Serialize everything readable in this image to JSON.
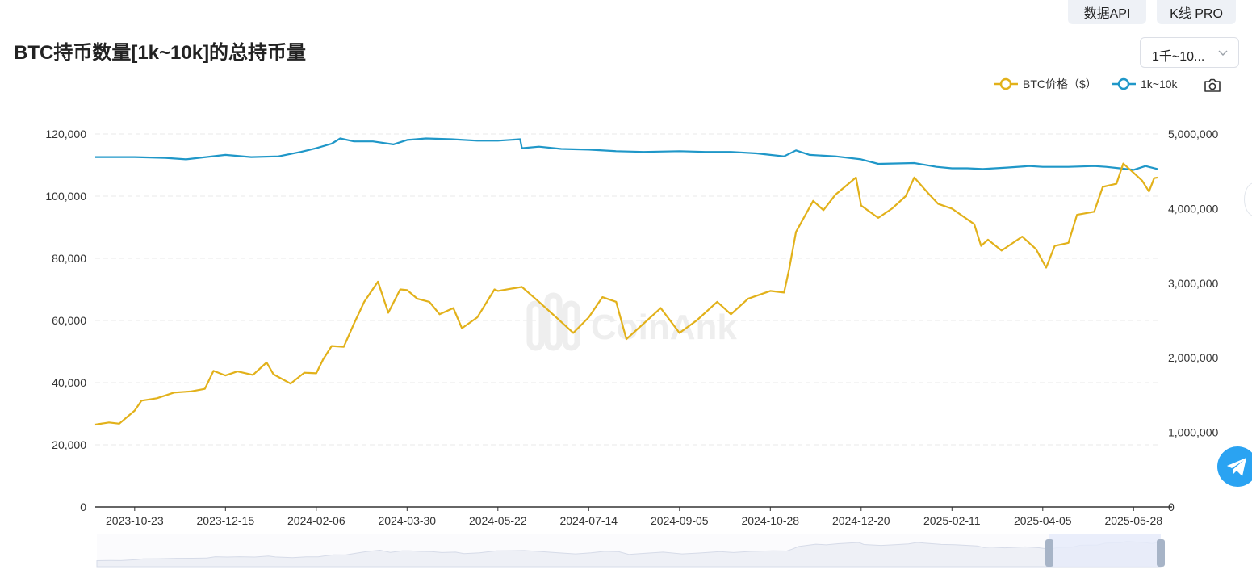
{
  "header": {
    "api_button": "数据API",
    "kline_button": "K线 PRO",
    "title": "BTC持币数量[1k~10k]的总持币量",
    "range_select": "1千~10..."
  },
  "legend": {
    "btc_label": "BTC价格（$）",
    "holder_label": "1k~10k"
  },
  "colors": {
    "btc_price": "#e2b11a",
    "holder": "#1f97c8",
    "grid": "#e8e8e8",
    "axis": "#333333",
    "zoom_fill": "#e8ecfa",
    "zoom_handle": "#a7b4c7"
  },
  "chart_data": {
    "type": "line",
    "x_ticks": [
      "2023-10-23",
      "2023-12-15",
      "2024-02-06",
      "2024-03-30",
      "2024-05-22",
      "2024-07-14",
      "2024-09-05",
      "2024-10-28",
      "2024-12-20",
      "2025-02-11",
      "2025-04-05",
      "2025-05-28"
    ],
    "x_range": [
      "2023-09-30",
      "2025-06-11"
    ],
    "y_left": {
      "ticks": [
        "0",
        "20,000",
        "40,000",
        "60,000",
        "80,000",
        "100,000",
        "120,000"
      ],
      "min": 0,
      "max": 120000
    },
    "y_right": {
      "ticks": [
        "0",
        "1,000,000",
        "2,000,000",
        "3,000,000",
        "4,000,000",
        "5,000,000"
      ],
      "min": 0,
      "max": 5000000
    },
    "grid": true,
    "legend_position": "top-right",
    "watermark": "CoinAnk",
    "series": [
      {
        "name": "BTC价格（$）",
        "axis": "left",
        "points": [
          [
            "2023-09-30",
            26500
          ],
          [
            "2023-10-08",
            27200
          ],
          [
            "2023-10-14",
            26800
          ],
          [
            "2023-10-23",
            31000
          ],
          [
            "2023-10-27",
            34200
          ],
          [
            "2023-11-05",
            35000
          ],
          [
            "2023-11-15",
            36800
          ],
          [
            "2023-11-25",
            37200
          ],
          [
            "2023-12-03",
            38000
          ],
          [
            "2023-12-08",
            43800
          ],
          [
            "2023-12-15",
            42300
          ],
          [
            "2023-12-22",
            43600
          ],
          [
            "2023-12-31",
            42500
          ],
          [
            "2024-01-08",
            46500
          ],
          [
            "2024-01-12",
            42700
          ],
          [
            "2024-01-22",
            39700
          ],
          [
            "2024-01-30",
            43200
          ],
          [
            "2024-02-06",
            43000
          ],
          [
            "2024-02-10",
            47500
          ],
          [
            "2024-02-15",
            51800
          ],
          [
            "2024-02-22",
            51500
          ],
          [
            "2024-02-28",
            59000
          ],
          [
            "2024-03-05",
            66000
          ],
          [
            "2024-03-13",
            72500
          ],
          [
            "2024-03-19",
            62500
          ],
          [
            "2024-03-26",
            70000
          ],
          [
            "2024-03-30",
            69800
          ],
          [
            "2024-04-05",
            67000
          ],
          [
            "2024-04-12",
            66000
          ],
          [
            "2024-04-18",
            62000
          ],
          [
            "2024-04-26",
            64000
          ],
          [
            "2024-05-01",
            57500
          ],
          [
            "2024-05-10",
            61000
          ],
          [
            "2024-05-20",
            70000
          ],
          [
            "2024-05-22",
            69500
          ],
          [
            "2024-06-05",
            70800
          ],
          [
            "2024-06-15",
            66000
          ],
          [
            "2024-06-25",
            61000
          ],
          [
            "2024-07-05",
            56000
          ],
          [
            "2024-07-14",
            61000
          ],
          [
            "2024-07-22",
            67500
          ],
          [
            "2024-07-30",
            66000
          ],
          [
            "2024-08-05",
            54000
          ],
          [
            "2024-08-15",
            59000
          ],
          [
            "2024-08-25",
            64000
          ],
          [
            "2024-09-05",
            56000
          ],
          [
            "2024-09-15",
            60000
          ],
          [
            "2024-09-27",
            66000
          ],
          [
            "2024-10-05",
            62000
          ],
          [
            "2024-10-15",
            67000
          ],
          [
            "2024-10-28",
            69500
          ],
          [
            "2024-11-05",
            69000
          ],
          [
            "2024-11-08",
            76500
          ],
          [
            "2024-11-12",
            88500
          ],
          [
            "2024-11-22",
            98500
          ],
          [
            "2024-11-28",
            95500
          ],
          [
            "2024-12-05",
            100500
          ],
          [
            "2024-12-17",
            106000
          ],
          [
            "2024-12-20",
            97000
          ],
          [
            "2024-12-30",
            93000
          ],
          [
            "2025-01-07",
            96000
          ],
          [
            "2025-01-15",
            100000
          ],
          [
            "2025-01-20",
            106000
          ],
          [
            "2025-01-28",
            101000
          ],
          [
            "2025-02-03",
            97500
          ],
          [
            "2025-02-11",
            96000
          ],
          [
            "2025-02-24",
            91000
          ],
          [
            "2025-02-28",
            84000
          ],
          [
            "2025-03-04",
            86000
          ],
          [
            "2025-03-12",
            82500
          ],
          [
            "2025-03-24",
            87000
          ],
          [
            "2025-04-01",
            83000
          ],
          [
            "2025-04-07",
            77000
          ],
          [
            "2025-04-12",
            84000
          ],
          [
            "2025-04-20",
            85000
          ],
          [
            "2025-04-25",
            94000
          ],
          [
            "2025-05-05",
            95000
          ],
          [
            "2025-05-10",
            103000
          ],
          [
            "2025-05-18",
            104000
          ],
          [
            "2025-05-22",
            110500
          ],
          [
            "2025-05-28",
            107500
          ],
          [
            "2025-06-02",
            105000
          ],
          [
            "2025-06-06",
            101500
          ],
          [
            "2025-06-09",
            105800
          ],
          [
            "2025-06-11",
            106000
          ]
        ]
      },
      {
        "name": "1k~10k",
        "axis": "right",
        "points": [
          [
            "2023-09-30",
            4690000
          ],
          [
            "2023-10-23",
            4690000
          ],
          [
            "2023-11-10",
            4680000
          ],
          [
            "2023-11-22",
            4660000
          ],
          [
            "2023-12-15",
            4720000
          ],
          [
            "2023-12-30",
            4690000
          ],
          [
            "2024-01-15",
            4700000
          ],
          [
            "2024-01-28",
            4760000
          ],
          [
            "2024-02-06",
            4810000
          ],
          [
            "2024-02-15",
            4870000
          ],
          [
            "2024-02-20",
            4940000
          ],
          [
            "2024-02-28",
            4900000
          ],
          [
            "2024-03-10",
            4900000
          ],
          [
            "2024-03-22",
            4860000
          ],
          [
            "2024-03-30",
            4920000
          ],
          [
            "2024-04-10",
            4940000
          ],
          [
            "2024-04-25",
            4930000
          ],
          [
            "2024-05-10",
            4910000
          ],
          [
            "2024-05-22",
            4910000
          ],
          [
            "2024-06-04",
            4930000
          ],
          [
            "2024-06-05",
            4810000
          ],
          [
            "2024-06-15",
            4830000
          ],
          [
            "2024-06-28",
            4800000
          ],
          [
            "2024-07-14",
            4790000
          ],
          [
            "2024-07-30",
            4770000
          ],
          [
            "2024-08-15",
            4760000
          ],
          [
            "2024-09-05",
            4770000
          ],
          [
            "2024-09-20",
            4760000
          ],
          [
            "2024-10-05",
            4760000
          ],
          [
            "2024-10-20",
            4740000
          ],
          [
            "2024-10-28",
            4720000
          ],
          [
            "2024-11-05",
            4700000
          ],
          [
            "2024-11-12",
            4780000
          ],
          [
            "2024-11-20",
            4720000
          ],
          [
            "2024-12-05",
            4700000
          ],
          [
            "2024-12-20",
            4660000
          ],
          [
            "2024-12-30",
            4600000
          ],
          [
            "2025-01-20",
            4610000
          ],
          [
            "2025-02-02",
            4560000
          ],
          [
            "2025-02-11",
            4540000
          ],
          [
            "2025-02-20",
            4540000
          ],
          [
            "2025-03-01",
            4530000
          ],
          [
            "2025-03-15",
            4550000
          ],
          [
            "2025-03-28",
            4570000
          ],
          [
            "2025-04-05",
            4560000
          ],
          [
            "2025-04-20",
            4560000
          ],
          [
            "2025-05-05",
            4570000
          ],
          [
            "2025-05-12",
            4560000
          ],
          [
            "2025-05-20",
            4540000
          ],
          [
            "2025-05-28",
            4520000
          ],
          [
            "2025-06-04",
            4570000
          ],
          [
            "2025-06-11",
            4530000
          ]
        ]
      }
    ]
  }
}
